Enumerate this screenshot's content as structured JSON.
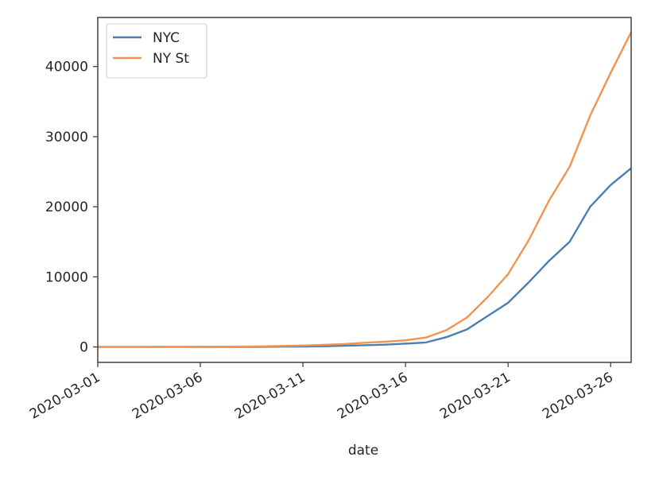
{
  "chart_data": {
    "type": "line",
    "title": "",
    "xlabel": "date",
    "ylabel": "",
    "x": [
      "2020-03-01",
      "2020-03-02",
      "2020-03-03",
      "2020-03-04",
      "2020-03-05",
      "2020-03-06",
      "2020-03-07",
      "2020-03-08",
      "2020-03-09",
      "2020-03-10",
      "2020-03-11",
      "2020-03-12",
      "2020-03-13",
      "2020-03-14",
      "2020-03-15",
      "2020-03-16",
      "2020-03-17",
      "2020-03-18",
      "2020-03-19",
      "2020-03-20",
      "2020-03-21",
      "2020-03-22",
      "2020-03-23",
      "2020-03-24",
      "2020-03-25",
      "2020-03-26",
      "2020-03-27"
    ],
    "xticks": [
      "2020-03-01",
      "2020-03-06",
      "2020-03-11",
      "2020-03-16",
      "2020-03-21",
      "2020-03-26"
    ],
    "xlim": [
      "2020-03-01",
      "2020-03-27"
    ],
    "yticks": [
      0,
      10000,
      20000,
      30000,
      40000
    ],
    "ylim": [
      -2200,
      47000
    ],
    "grid": false,
    "legend_position": "top-left",
    "series": [
      {
        "name": "NYC",
        "color": "#4c7fb0",
        "values": [
          1,
          1,
          2,
          3,
          4,
          5,
          12,
          15,
          25,
          40,
          65,
          100,
          170,
          250,
          330,
          470,
          650,
          1400,
          2500,
          4400,
          6300,
          9200,
          12300,
          15000,
          20000,
          23100,
          25500
        ]
      },
      {
        "name": "NY St",
        "color": "#f0944f",
        "values": [
          1,
          1,
          2,
          10,
          20,
          30,
          40,
          60,
          90,
          150,
          200,
          300,
          420,
          600,
          750,
          950,
          1350,
          2400,
          4200,
          7100,
          10400,
          15200,
          20900,
          25700,
          33000,
          39100,
          44900
        ]
      }
    ]
  }
}
